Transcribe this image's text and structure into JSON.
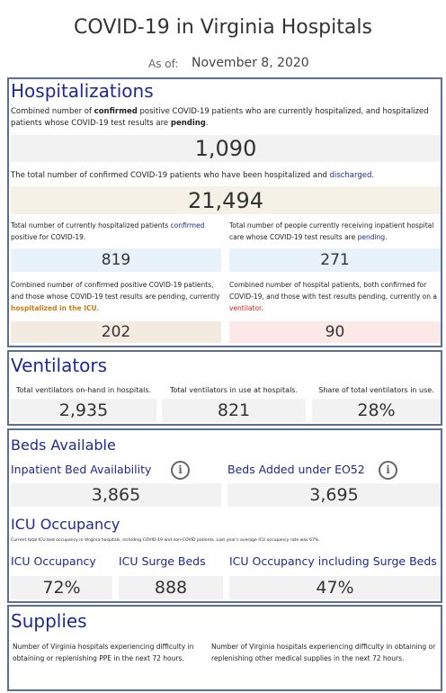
{
  "header": {
    "title": "COVID-19 in Virginia Hospitals",
    "as_of_label": "As of:",
    "date": "November 8, 2020"
  },
  "hospitalizations": {
    "title": "Hospitalizations",
    "current": {
      "description": [
        "Combined number of ",
        "confirmed",
        " positive COVID-19 patients who are currently hospitalized, and hospitalized patients whose COVID-19 test results are ",
        "pending",
        "."
      ],
      "value": "1,090"
    },
    "discharged": {
      "description": [
        "The total number of confirmed COVID-19 patients who have been hospitalized and ",
        "discharged",
        "."
      ],
      "value": "21,494"
    },
    "confirmed": {
      "description": [
        "Total number of currently hospitalized patients ",
        "confirmed",
        " positive for COVID-19."
      ],
      "value": "819"
    },
    "pending": {
      "description": [
        "Total number of people currently receiving inpatient hospital care whose COVID-19 test results are ",
        "pending",
        "."
      ],
      "value": "271"
    },
    "icu": {
      "description": [
        "Combined number of confirmed positive COVID-19 patients, and those whose COVID-19 test results are pending, currently ",
        "hospitalized in the ICU",
        "."
      ],
      "value": "202"
    },
    "ventilator": {
      "description": [
        "Combined number of hospital patients, both confirmed for COVID-19, and those with test results pending, currently on a ",
        "ventilator",
        "."
      ],
      "value": "90"
    }
  },
  "ventilators": {
    "title": "Ventilators",
    "items": [
      {
        "label": "Total ventilators on-hand in hospitals.",
        "value": "2,935"
      },
      {
        "label": "Total ventilators in use at hospitals.",
        "value": "821"
      },
      {
        "label": "Share of total ventilators in use.",
        "value": "28%"
      }
    ]
  },
  "beds": {
    "title": "Beds Available",
    "items": [
      {
        "label": "Inpatient Bed Availability",
        "value": "3,865"
      },
      {
        "label": "Beds Added under EO52",
        "value": "3,695"
      }
    ]
  },
  "icu_occupancy": {
    "title": "ICU Occupancy",
    "note": "Current total ICU bed occupancy in Virginia hospitals, including COVID-19 and non-COVID patients. Last year's average ICU occupancy rate was 67%.",
    "items": [
      {
        "label": "ICU Occupancy",
        "value": "72%"
      },
      {
        "label": "ICU Surge Beds",
        "value": "888"
      },
      {
        "label": "ICU Occupancy including Surge Beds",
        "value": "47%"
      }
    ]
  },
  "supplies": {
    "title": "Supplies",
    "items": [
      "Number of Virginia hospitals experiencing difficulty in obtaining or replenishing PPE in the next 72 hours.",
      "Number of Virginia hospitals experiencing difficulty in obtaining or replenishing other medical supplies in the next 72 hours."
    ]
  }
}
